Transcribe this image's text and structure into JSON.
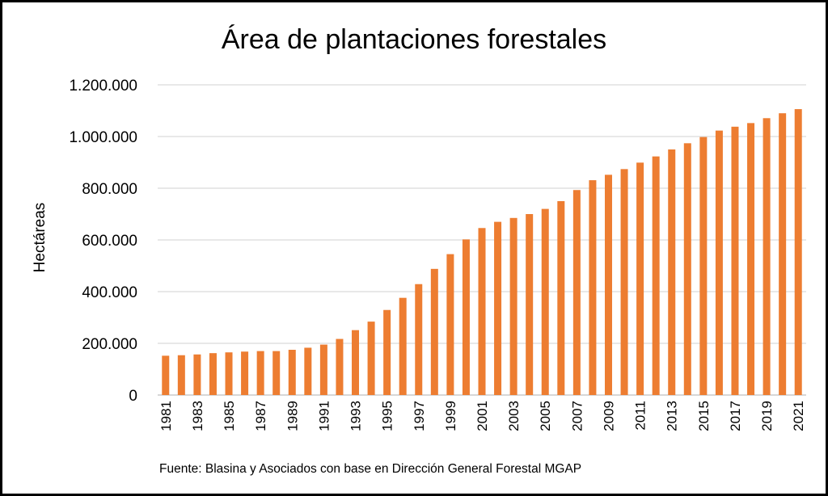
{
  "chart_data": {
    "type": "bar",
    "title": "Área de plantaciones forestales",
    "xlabel": "",
    "ylabel": "Hectáreas",
    "ylim": [
      0,
      1200000
    ],
    "yticks": [
      0,
      200000,
      400000,
      600000,
      800000,
      1000000,
      1200000
    ],
    "ytick_labels": [
      "0",
      "200.000",
      "400.000",
      "600.000",
      "800.000",
      "1.000.000",
      "1.200.000"
    ],
    "grid": true,
    "bar_color": "#ED7D31",
    "categories": [
      "1981",
      "1982",
      "1983",
      "1984",
      "1985",
      "1986",
      "1987",
      "1988",
      "1989",
      "1990",
      "1991",
      "1992",
      "1993",
      "1994",
      "1995",
      "1996",
      "1997",
      "1998",
      "1999",
      "2000",
      "2001",
      "2002",
      "2003",
      "2004",
      "2005",
      "2006",
      "2007",
      "2008",
      "2009",
      "2010",
      "2011",
      "2012",
      "2013",
      "2014",
      "2015",
      "2016",
      "2017",
      "2018",
      "2019",
      "2020",
      "2021"
    ],
    "values": [
      152000,
      154000,
      157000,
      162000,
      165000,
      168000,
      170000,
      170000,
      175000,
      183000,
      195000,
      217000,
      251000,
      284000,
      329000,
      376000,
      429000,
      488000,
      545000,
      602000,
      646000,
      670000,
      685000,
      700000,
      720000,
      750000,
      793000,
      831000,
      852000,
      874000,
      899000,
      923000,
      950000,
      974000,
      998000,
      1023000,
      1038000,
      1052000,
      1071000,
      1090000,
      1106000
    ],
    "source": "Fuente: Blasina y Asociados con base en Dirección General Forestal MGAP"
  }
}
